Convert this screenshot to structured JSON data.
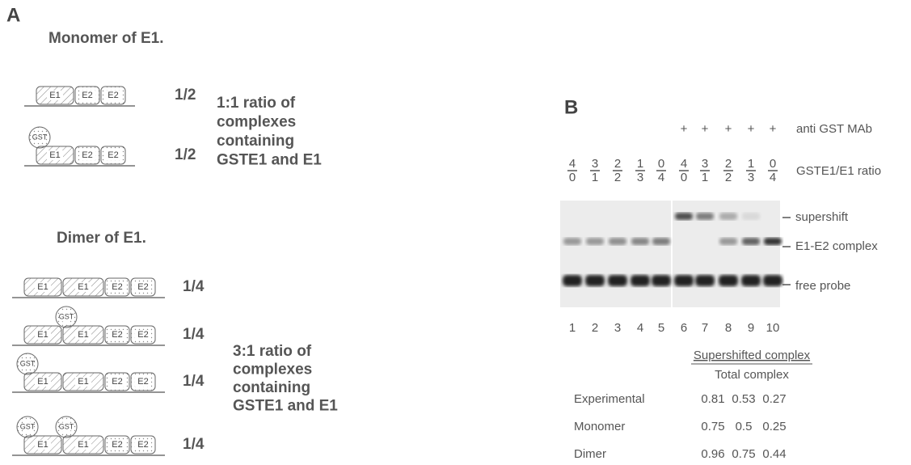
{
  "panel_a": {
    "label": "A",
    "monomer": {
      "title": "Monomer of E1.",
      "rows": [
        {
          "fraction": "1/2",
          "domains": [
            {
              "label": "E1"
            },
            {
              "label": "E2"
            },
            {
              "label": "E2"
            }
          ]
        },
        {
          "fraction": "1/2",
          "domains": [
            {
              "label": "E1",
              "tag": "GST"
            },
            {
              "label": "E2"
            },
            {
              "label": "E2"
            }
          ]
        }
      ],
      "note": [
        "1:1 ratio of",
        "complexes",
        "containing",
        "GSTE1 and E1"
      ]
    },
    "dimer": {
      "title": "Dimer of E1.",
      "rows": [
        {
          "fraction": "1/4",
          "domains": [
            {
              "label": "E1"
            },
            {
              "label": "E1"
            },
            {
              "label": "E2"
            },
            {
              "label": "E2"
            }
          ]
        },
        {
          "fraction": "1/4",
          "domains": [
            {
              "label": "E1"
            },
            {
              "label": "E1",
              "tag": "GST"
            },
            {
              "label": "E2"
            },
            {
              "label": "E2"
            }
          ]
        },
        {
          "fraction": "1/4",
          "domains": [
            {
              "label": "E1",
              "tag": "GST"
            },
            {
              "label": "E1"
            },
            {
              "label": "E2"
            },
            {
              "label": "E2"
            }
          ]
        },
        {
          "fraction": "1/4",
          "domains": [
            {
              "label": "E1",
              "tag": "GST"
            },
            {
              "label": "E1",
              "tag": "GST"
            },
            {
              "label": "E2"
            },
            {
              "label": "E2"
            }
          ]
        }
      ],
      "note": [
        "3:1 ratio of",
        " complexes",
        "containing",
        "GSTE1 and E1"
      ]
    }
  },
  "panel_b": {
    "label": "B",
    "treatment": {
      "signs": [
        "+",
        "+",
        "+",
        "+",
        "+"
      ],
      "label": "anti GST MAb"
    },
    "ratios": {
      "values": [
        {
          "top": "4",
          "bottom": "0"
        },
        {
          "top": "3",
          "bottom": "1"
        },
        {
          "top": "2",
          "bottom": "2"
        },
        {
          "top": "1",
          "bottom": "3"
        },
        {
          "top": "0",
          "bottom": "4"
        },
        {
          "top": "4",
          "bottom": "0"
        },
        {
          "top": "3",
          "bottom": "1"
        },
        {
          "top": "2",
          "bottom": "2"
        },
        {
          "top": "1",
          "bottom": "3"
        },
        {
          "top": "0",
          "bottom": "4"
        }
      ],
      "label": "GSTE1/E1 ratio"
    },
    "bands": [
      "supershift",
      "E1-E2 complex",
      "free probe"
    ],
    "lanes": [
      "1",
      "2",
      "3",
      "4",
      "5",
      "6",
      "7",
      "8",
      "9",
      "10"
    ],
    "table": {
      "header": "Supershifted complex",
      "subheader": "Total complex",
      "rows": [
        {
          "label": "Experimental",
          "values": [
            0.81,
            0.53,
            0.27
          ]
        },
        {
          "label": "Monomer",
          "values": [
            0.75,
            0.5,
            0.25
          ]
        },
        {
          "label": "Dimer",
          "values": [
            0.96,
            0.75,
            0.44
          ]
        }
      ]
    }
  }
}
